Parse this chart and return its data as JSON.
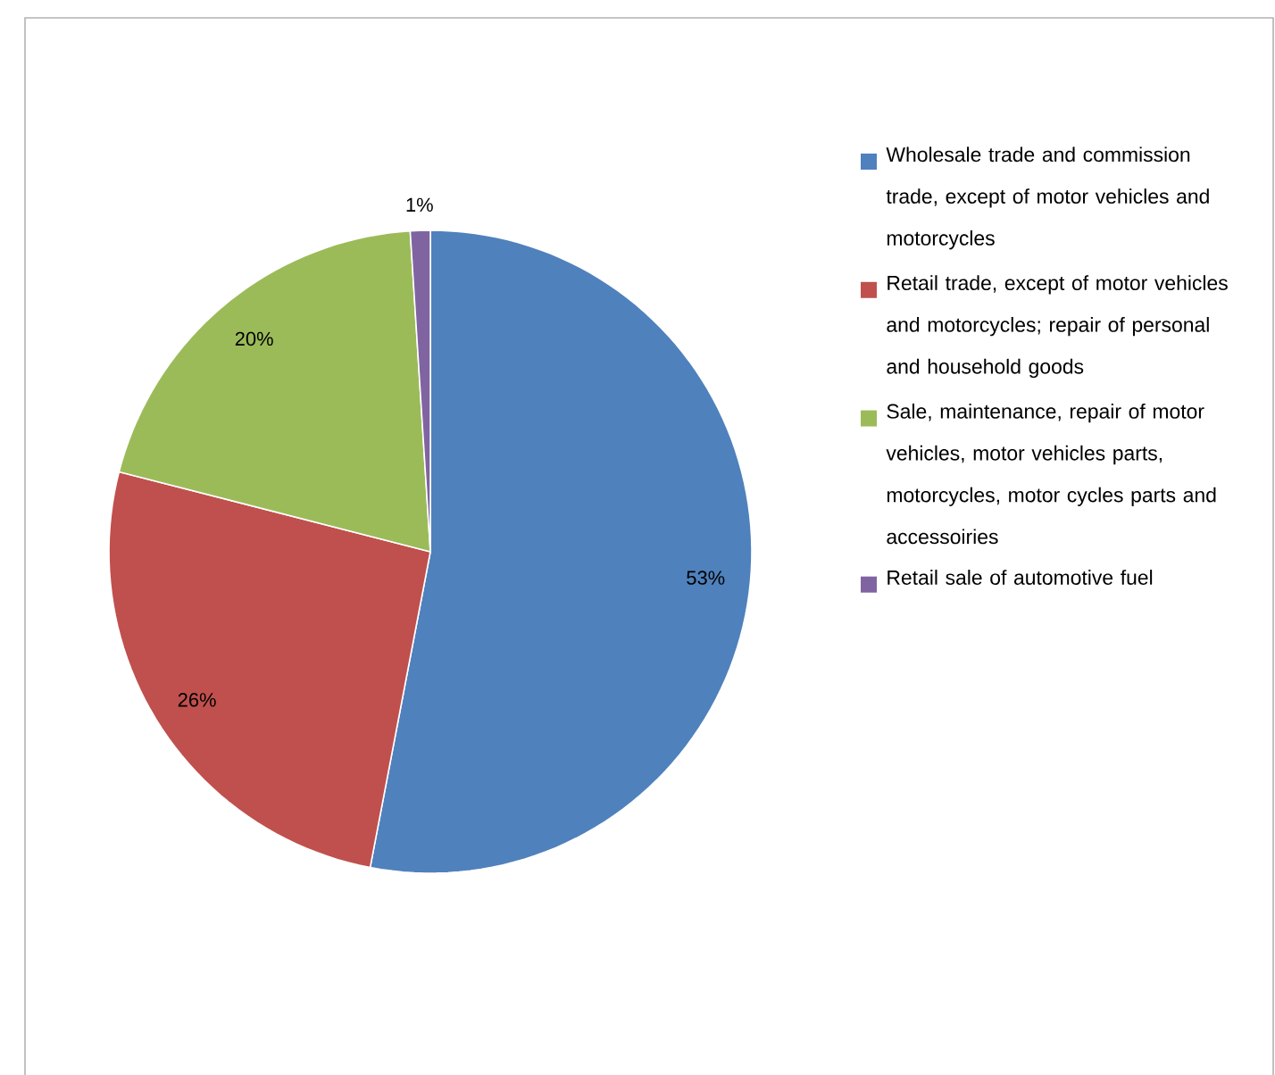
{
  "chart_data": {
    "type": "pie",
    "categories": [
      "Wholesale trade and commission trade, except of motor vehicles and motorcycles",
      "Retail trade, except of motor vehicles and motorcycles; repair of personal and household goods",
      "Sale, maintenance, repair of motor vehicles, motor vehicles parts, motorcycles, motor cycles parts and accessoiries",
      "Retail sale of automotive fuel"
    ],
    "values": [
      53,
      26,
      20,
      1
    ],
    "colors": [
      "#4f81bd",
      "#c0504d",
      "#9bbb59",
      "#8064a2"
    ],
    "value_labels": [
      "53%",
      "26%",
      "20%",
      "1%"
    ],
    "legend": "right"
  }
}
